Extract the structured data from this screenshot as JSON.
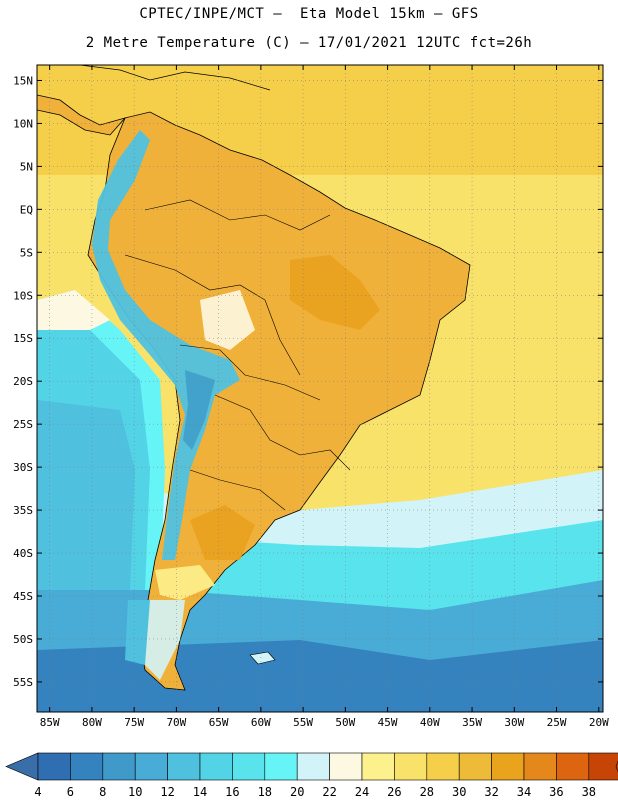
{
  "header": {
    "line1": "CPTEC/INPE/MCT –  Eta Model 15km – GFS",
    "line2": "2 Metre Temperature (C) – 17/01/2021 12UTC fct=26h"
  },
  "map": {
    "lon_range": [
      -86.5,
      -19.5
    ],
    "lat_range": [
      -58.5,
      16.8
    ],
    "lon_ticks": [
      -85,
      -80,
      -75,
      -70,
      -65,
      -60,
      -55,
      -50,
      -45,
      -40,
      -35,
      -30,
      -25,
      -20
    ],
    "lon_labels": [
      "85W",
      "80W",
      "75W",
      "70W",
      "65W",
      "60W",
      "55W",
      "50W",
      "45W",
      "40W",
      "35W",
      "30W",
      "25W",
      "20W"
    ],
    "lat_ticks": [
      15,
      10,
      5,
      0,
      -5,
      -10,
      -15,
      -20,
      -25,
      -30,
      -35,
      -40,
      -45,
      -50,
      -55
    ],
    "lat_labels": [
      "15N",
      "10N",
      "5N",
      "EQ",
      "5S",
      "10S",
      "15S",
      "20S",
      "25S",
      "30S",
      "35S",
      "40S",
      "45S",
      "50S",
      "55S"
    ]
  },
  "colorbar": {
    "labels": [
      "4",
      "6",
      "8",
      "10",
      "12",
      "14",
      "16",
      "18",
      "20",
      "22",
      "24",
      "26",
      "28",
      "30",
      "32",
      "34",
      "36",
      "38"
    ],
    "colors": [
      "#2f6eb0",
      "#3583be",
      "#3f9ac9",
      "#49acd6",
      "#4fc1df",
      "#53d3e6",
      "#59e3ed",
      "#66f4f6",
      "#d2f4f8",
      "#fdf8e2",
      "#fdf18e",
      "#f9e26a",
      "#f5cf4a",
      "#edbb37",
      "#eaa31c",
      "#e5881c",
      "#de6510",
      "#c64406"
    ],
    "low_color": "#3a6ea8",
    "high_color": "#c1440e"
  }
}
